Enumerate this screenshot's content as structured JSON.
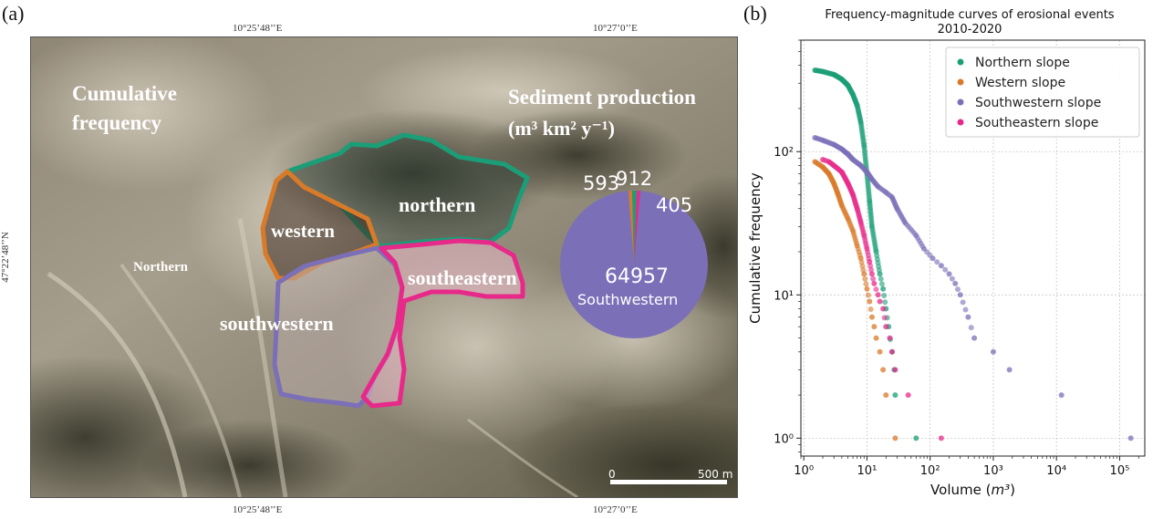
{
  "panel_a": {
    "label": "(a)",
    "coords": {
      "top_left": "10°25’48’’E",
      "top_right": "10°27’0’’E",
      "bottom_left": "10°25’48’’E",
      "bottom_right": "10°27’0’’E",
      "left": "47°22’48’’N"
    },
    "overlay": {
      "cumulative_frequency_line1": "Cumulative",
      "cumulative_frequency_line2": "frequency",
      "sediment_title": "Sediment production",
      "sediment_units": "(m³ km² y⁻¹)",
      "region_northern": "northern",
      "region_western": "western",
      "region_southeastern": "southeastern",
      "region_southwestern": "southwestern",
      "label_northern_small": "Northern"
    },
    "pie": {
      "slices": [
        {
          "name": "Southwestern",
          "value": 64957,
          "color": "#7b6fb8"
        },
        {
          "name": "Western",
          "value": 593,
          "color": "#d97a29"
        },
        {
          "name": "Northern",
          "value": 912,
          "color": "#1b9e77"
        },
        {
          "name": "Southeastern",
          "value": 405,
          "color": "#e7298a"
        }
      ],
      "label_big": "64957",
      "label_big_name": "Southwestern",
      "label_a": "593",
      "label_b": "912",
      "label_c": "405"
    },
    "scalebar": {
      "start": "0",
      "end": "500 m"
    },
    "colors": {
      "northern": "#1b9e77",
      "western": "#d97a29",
      "southwestern": "#7b6fb8",
      "southeastern": "#e7298a"
    }
  },
  "panel_b": {
    "label": "(b)"
  },
  "chart_data": {
    "type": "scatter",
    "title": "Frequency-magnitude curves of erosional events",
    "subtitle": "2010-2020",
    "xlabel": "Volume",
    "xlabel_unit": "m³",
    "ylabel": "Cumulative frequency",
    "xscale": "log",
    "yscale": "log",
    "xlim": [
      0.9,
      250000
    ],
    "ylim": [
      0.75,
      600
    ],
    "x_ticks": [
      1,
      10,
      100,
      1000,
      10000,
      100000
    ],
    "x_tick_labels": [
      "10⁰",
      "10¹",
      "10²",
      "10³",
      "10⁴",
      "10⁵"
    ],
    "y_ticks": [
      1,
      10,
      100
    ],
    "y_tick_labels": [
      "10⁰",
      "10¹",
      "10²"
    ],
    "grid": true,
    "legend_position": "top-right",
    "series": [
      {
        "name": "Northern slope",
        "color": "#1b9e77",
        "n": 370,
        "points": [
          [
            1.5,
            370
          ],
          [
            2,
            362
          ],
          [
            3,
            345
          ],
          [
            4,
            320
          ],
          [
            5,
            290
          ],
          [
            6,
            250
          ],
          [
            7,
            210
          ],
          [
            8,
            160
          ],
          [
            9,
            110
          ],
          [
            10,
            70
          ],
          [
            11,
            45
          ],
          [
            12,
            30
          ],
          [
            14,
            20
          ],
          [
            16,
            14
          ],
          [
            18,
            11
          ],
          [
            20,
            8
          ],
          [
            22,
            6
          ],
          [
            25,
            4
          ],
          [
            27,
            3
          ],
          [
            28,
            2
          ],
          [
            60,
            1
          ]
        ]
      },
      {
        "name": "Western slope",
        "color": "#d97a29",
        "n": 85,
        "points": [
          [
            1.5,
            85
          ],
          [
            2,
            78
          ],
          [
            2.5,
            70
          ],
          [
            3,
            60
          ],
          [
            3.5,
            50
          ],
          [
            4,
            42
          ],
          [
            5,
            34
          ],
          [
            6,
            28
          ],
          [
            7,
            22
          ],
          [
            8,
            18
          ],
          [
            9,
            14
          ],
          [
            10,
            11
          ],
          [
            11,
            9
          ],
          [
            12,
            7
          ],
          [
            13,
            6
          ],
          [
            14,
            5
          ],
          [
            16,
            4
          ],
          [
            18,
            3
          ],
          [
            20,
            2
          ],
          [
            28,
            1
          ]
        ]
      },
      {
        "name": "Southwestern slope",
        "color": "#7b6fb8",
        "n": 125,
        "points": [
          [
            1.5,
            125
          ],
          [
            2,
            120
          ],
          [
            3,
            112
          ],
          [
            4,
            104
          ],
          [
            5,
            96
          ],
          [
            6,
            88
          ],
          [
            8,
            80
          ],
          [
            10,
            72
          ],
          [
            12,
            64
          ],
          [
            15,
            57
          ],
          [
            20,
            52
          ],
          [
            25,
            48
          ],
          [
            30,
            40
          ],
          [
            40,
            32
          ],
          [
            60,
            26
          ],
          [
            80,
            21
          ],
          [
            110,
            18
          ],
          [
            150,
            16
          ],
          [
            200,
            14
          ],
          [
            250,
            12
          ],
          [
            300,
            10
          ],
          [
            400,
            7
          ],
          [
            500,
            5
          ],
          [
            1000,
            4
          ],
          [
            1800,
            3
          ],
          [
            12000,
            2
          ],
          [
            150000,
            1
          ]
        ]
      },
      {
        "name": "Southeastern slope",
        "color": "#e7298a",
        "n": 88,
        "points": [
          [
            2,
            88
          ],
          [
            2.5,
            85
          ],
          [
            3,
            80
          ],
          [
            4,
            72
          ],
          [
            5,
            60
          ],
          [
            6,
            50
          ],
          [
            7,
            40
          ],
          [
            8,
            32
          ],
          [
            9,
            26
          ],
          [
            10,
            21
          ],
          [
            11,
            17
          ],
          [
            12,
            14
          ],
          [
            13,
            12
          ],
          [
            15,
            10
          ],
          [
            16,
            9
          ],
          [
            18,
            8
          ],
          [
            20,
            6
          ],
          [
            23,
            5
          ],
          [
            25,
            4
          ],
          [
            28,
            3
          ],
          [
            45,
            2
          ],
          [
            150,
            1
          ]
        ]
      }
    ]
  }
}
